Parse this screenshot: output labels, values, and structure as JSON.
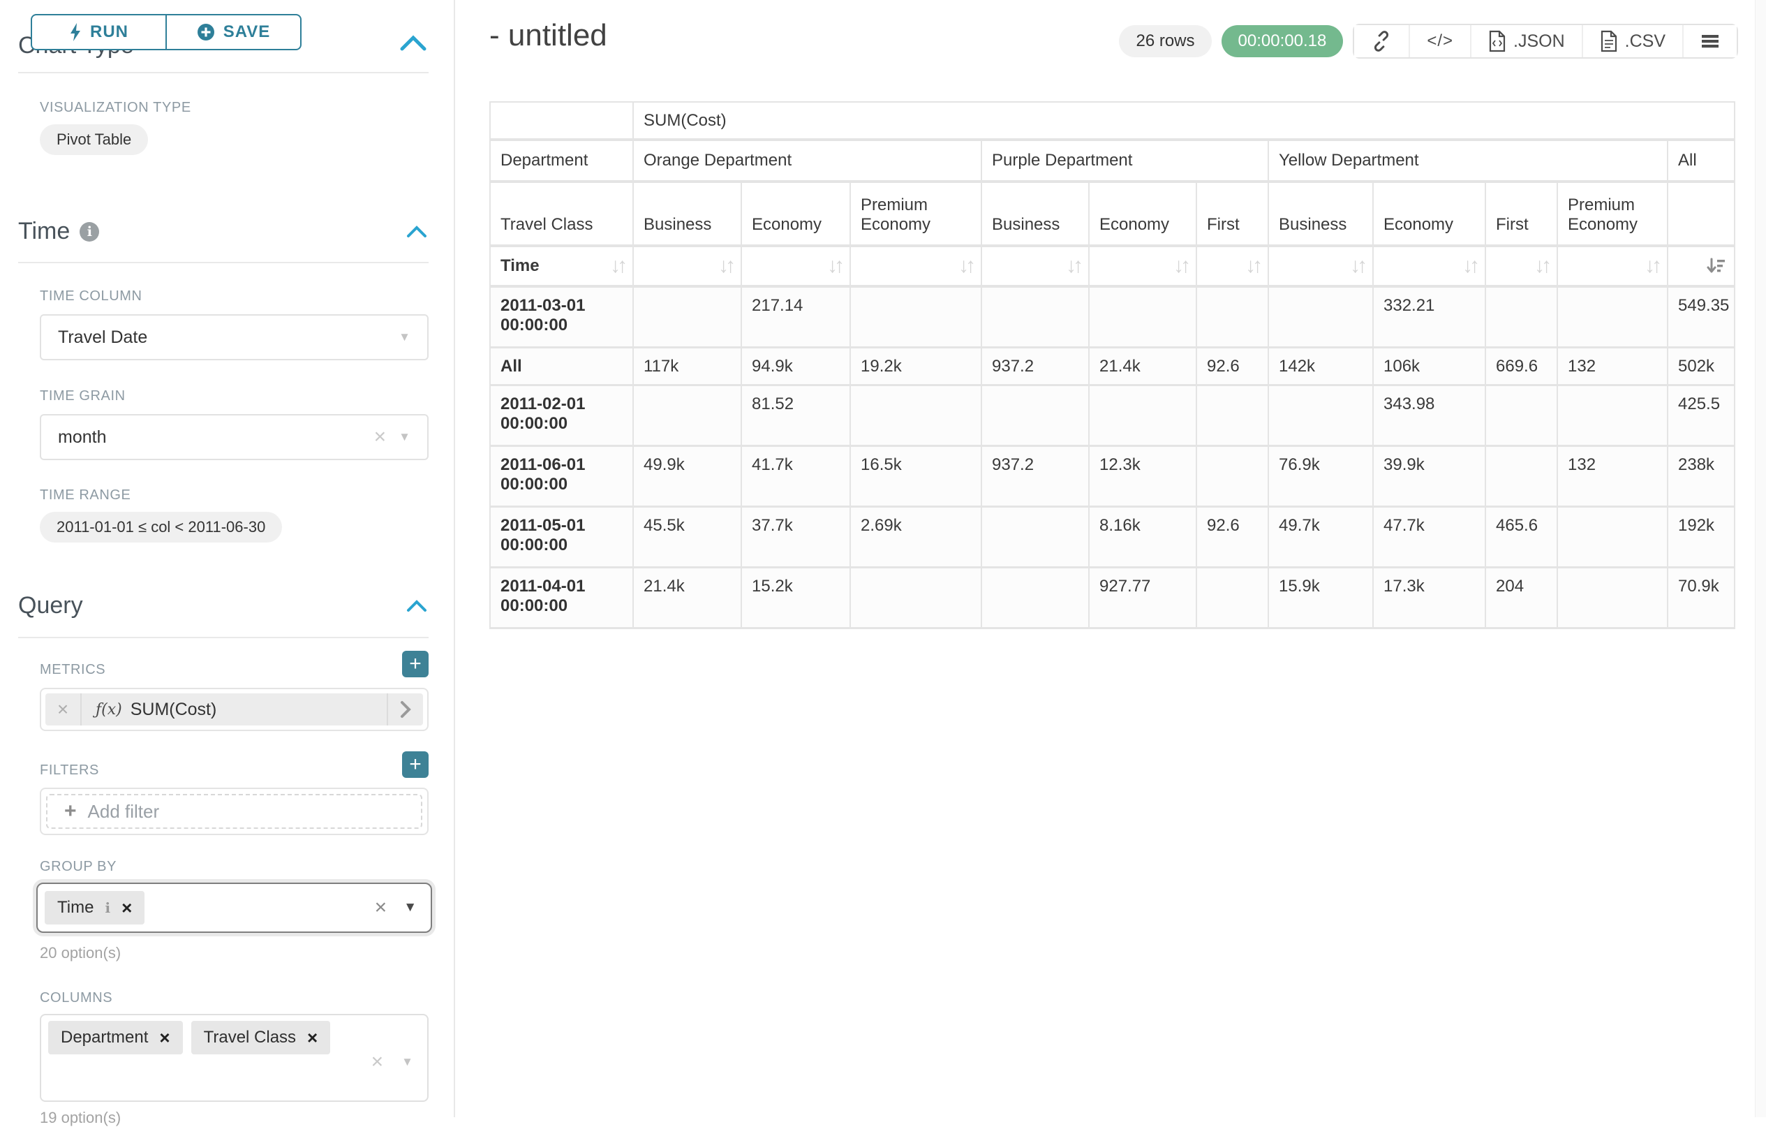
{
  "panel": {
    "run_label": "RUN",
    "save_label": "SAVE",
    "chart_type_heading": "Chart Type",
    "viz_type_label": "VISUALIZATION TYPE",
    "viz_type_value": "Pivot Table",
    "time": {
      "heading": "Time",
      "time_column_label": "TIME COLUMN",
      "time_column_value": "Travel Date",
      "time_grain_label": "TIME GRAIN",
      "time_grain_value": "month",
      "time_range_label": "TIME RANGE",
      "time_range_value": "2011-01-01 ≤ col < 2011-06-30"
    },
    "query": {
      "heading": "Query",
      "metrics_label": "METRICS",
      "metric_fx": "ƒ(x)",
      "metric_value": "SUM(Cost)",
      "filters_label": "FILTERS",
      "add_filter_label": "Add filter",
      "group_by_label": "GROUP BY",
      "group_by_chip": "Time",
      "group_by_options": "20 option(s)",
      "columns_label": "COLUMNS",
      "columns_chips": [
        "Department",
        "Travel Class"
      ],
      "columns_options": "19 option(s)"
    }
  },
  "header": {
    "title": "- untitled",
    "rows_badge": "26 rows",
    "timer": "00:00:00.18",
    "code_glyph": "</>",
    "json_label": ".JSON",
    "csv_label": ".CSV"
  },
  "pivot_table": {
    "metric_header": "SUM(Cost)",
    "dept_row_label": "Department",
    "groups": [
      {
        "label": "Orange Department",
        "span": 3
      },
      {
        "label": "Purple Department",
        "span": 3
      },
      {
        "label": "Yellow Department",
        "span": 4
      },
      {
        "label": "All",
        "span": 1
      }
    ],
    "class_row_label": "Travel Class",
    "subcolumns": [
      "Business",
      "Economy",
      "Premium Economy",
      "Business",
      "Economy",
      "First",
      "Business",
      "Economy",
      "First",
      "Premium Economy",
      ""
    ],
    "sort_row_label": "Time",
    "rows": [
      {
        "label": "2011-03-01 00:00:00",
        "values": [
          "",
          "217.14",
          "",
          "",
          "",
          "",
          "",
          "332.21",
          "",
          "",
          "549.35"
        ]
      },
      {
        "label": "All",
        "values": [
          "117k",
          "94.9k",
          "19.2k",
          "937.2",
          "21.4k",
          "92.6",
          "142k",
          "106k",
          "669.6",
          "132",
          "502k"
        ]
      },
      {
        "label": "2011-02-01 00:00:00",
        "values": [
          "",
          "81.52",
          "",
          "",
          "",
          "",
          "",
          "343.98",
          "",
          "",
          "425.5"
        ]
      },
      {
        "label": "2011-06-01 00:00:00",
        "values": [
          "49.9k",
          "41.7k",
          "16.5k",
          "937.2",
          "12.3k",
          "",
          "76.9k",
          "39.9k",
          "",
          "132",
          "238k"
        ]
      },
      {
        "label": "2011-05-01 00:00:00",
        "values": [
          "45.5k",
          "37.7k",
          "2.69k",
          "",
          "8.16k",
          "92.6",
          "49.7k",
          "47.7k",
          "465.6",
          "",
          "192k"
        ]
      },
      {
        "label": "2011-04-01 00:00:00",
        "values": [
          "21.4k",
          "15.2k",
          "",
          "",
          "927.77",
          "",
          "15.9k",
          "17.3k",
          "204",
          "",
          "70.9k"
        ]
      }
    ]
  }
}
